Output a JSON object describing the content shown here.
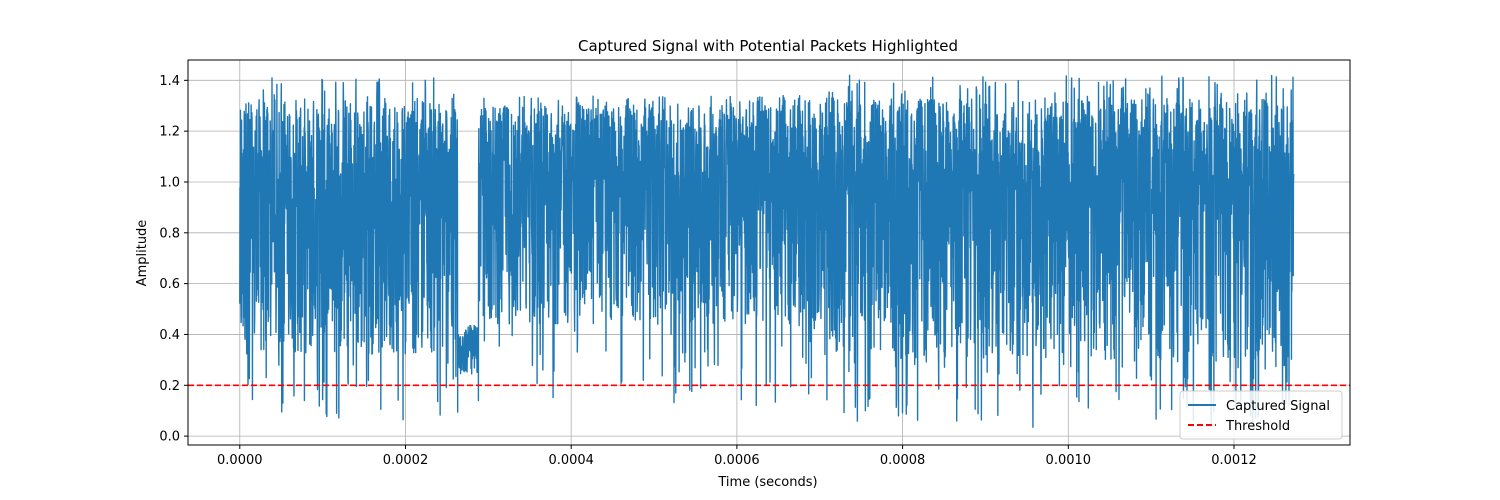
{
  "chart_data": {
    "type": "line",
    "title": "Captured Signal with Potential Packets Highlighted",
    "xlabel": "Time (seconds)",
    "ylabel": "Amplitude",
    "xlim": [
      -6.25e-05,
      0.00134
    ],
    "ylim": [
      -0.035,
      1.48
    ],
    "xticks": [
      0.0,
      0.0002,
      0.0004,
      0.0006,
      0.0008,
      0.001,
      0.0012
    ],
    "xtick_labels": [
      "0.0000",
      "0.0002",
      "0.0004",
      "0.0006",
      "0.0008",
      "0.0010",
      "0.0012"
    ],
    "yticks": [
      0.0,
      0.2,
      0.4,
      0.6,
      0.8,
      1.0,
      1.2,
      1.4
    ],
    "ytick_labels": [
      "0.0",
      "0.2",
      "0.4",
      "0.6",
      "0.8",
      "1.0",
      "1.2",
      "1.4"
    ],
    "grid": true,
    "legend": {
      "position": "lower-right"
    },
    "series": [
      {
        "name": "Captured Signal",
        "color": "#1f77b4",
        "style": "solid",
        "segments": [
          {
            "x_start": 0.0,
            "x_end": 0.000263,
            "center": 0.92,
            "upper": 1.33,
            "lower": 0.32,
            "min": 0.06,
            "max": 1.41
          },
          {
            "x_start": 0.000263,
            "x_end": 0.000288,
            "center": 0.33,
            "upper": 0.43,
            "lower": 0.25,
            "min": 0.24,
            "max": 0.44
          },
          {
            "x_start": 0.000288,
            "x_end": 0.00071,
            "center": 1.0,
            "upper": 1.3,
            "lower": 0.44,
            "min": 0.12,
            "max": 1.34
          },
          {
            "x_start": 0.00071,
            "x_end": 0.001272,
            "center": 0.95,
            "upper": 1.33,
            "lower": 0.3,
            "min": 0.03,
            "max": 1.42
          }
        ]
      },
      {
        "name": "Threshold",
        "color": "#ff0000",
        "style": "dashed",
        "y": 0.2
      }
    ]
  }
}
